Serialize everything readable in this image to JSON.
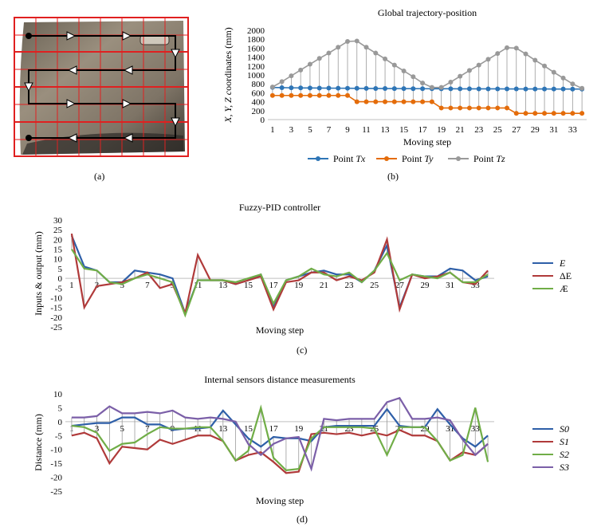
{
  "captions": {
    "a": "(a)",
    "b": "(b)",
    "c": "(c)",
    "d": "(d)"
  },
  "panel_a": {
    "description_icon": "car-door-grid-path-photo"
  },
  "chart_data": [
    {
      "id": "b",
      "type": "line",
      "title": "Global trajectory-position",
      "xlabel": "Moving step",
      "ylabel": "X, Y, Z coordinates (mm)",
      "ylim": [
        0,
        2000
      ],
      "yticks": [
        0,
        200,
        400,
        600,
        800,
        1000,
        1200,
        1400,
        1600,
        1800,
        2000
      ],
      "x": [
        1,
        2,
        3,
        4,
        5,
        6,
        7,
        8,
        9,
        10,
        11,
        12,
        13,
        14,
        15,
        16,
        17,
        18,
        19,
        20,
        21,
        22,
        23,
        24,
        25,
        26,
        27,
        28,
        29,
        30,
        31,
        32,
        33,
        34
      ],
      "xticks": [
        1,
        3,
        5,
        7,
        9,
        11,
        13,
        15,
        17,
        19,
        21,
        23,
        25,
        27,
        29,
        31,
        33
      ],
      "series": [
        {
          "name": "Point Tx",
          "color": "#2e75b6",
          "values": [
            720,
            715,
            712,
            710,
            708,
            706,
            705,
            703,
            702,
            700,
            698,
            697,
            696,
            695,
            694,
            693,
            692,
            691,
            690,
            690,
            689,
            689,
            688,
            688,
            688,
            687,
            687,
            686,
            686,
            686,
            685,
            685,
            684,
            684
          ]
        },
        {
          "name": "Point Ty",
          "color": "#e46c0a",
          "values": [
            540,
            540,
            540,
            540,
            540,
            540,
            540,
            540,
            540,
            400,
            400,
            400,
            400,
            400,
            400,
            400,
            400,
            400,
            260,
            260,
            260,
            260,
            260,
            260,
            260,
            260,
            140,
            140,
            140,
            140,
            140,
            140,
            140,
            140
          ]
        },
        {
          "name": "Point Tz",
          "color": "#999999",
          "values": [
            730,
            850,
            980,
            1110,
            1240,
            1370,
            1490,
            1620,
            1750,
            1760,
            1620,
            1490,
            1360,
            1220,
            1090,
            960,
            820,
            720,
            720,
            840,
            970,
            1100,
            1220,
            1350,
            1480,
            1610,
            1600,
            1470,
            1330,
            1200,
            1060,
            930,
            800,
            700
          ]
        }
      ]
    },
    {
      "id": "c",
      "type": "line",
      "title": "Fuzzy-PID controller",
      "xlabel": "Moving step",
      "ylabel": "Inputs & output (mm)",
      "ylim": [
        -25,
        30
      ],
      "yticks": [
        -25,
        -20,
        -15,
        -10,
        -5,
        0,
        5,
        10,
        15,
        20,
        25,
        30
      ],
      "x": [
        1,
        2,
        3,
        4,
        5,
        6,
        7,
        8,
        9,
        10,
        11,
        12,
        13,
        14,
        15,
        16,
        17,
        18,
        19,
        20,
        21,
        22,
        23,
        24,
        25,
        26,
        27,
        28,
        29,
        30,
        31,
        32,
        33,
        34
      ],
      "xticks": [
        1,
        3,
        5,
        7,
        9,
        11,
        13,
        15,
        17,
        19,
        21,
        23,
        25,
        27,
        29,
        31,
        33
      ],
      "series": [
        {
          "name": "E",
          "color": "#2e5fa8",
          "values": [
            22,
            6,
            4,
            -2,
            -2,
            4,
            3,
            2,
            0,
            -18,
            -1,
            -1,
            -1,
            -3,
            -1,
            2,
            -14,
            -1,
            1,
            3,
            4,
            2,
            2,
            -2,
            4,
            17,
            -15,
            2,
            1,
            1,
            5,
            4,
            -1,
            1
          ]
        },
        {
          "name": "ΔE",
          "color": "#b03a3a",
          "values": [
            23,
            -15,
            -4,
            -3,
            -2,
            0,
            3,
            -5,
            -3,
            -18,
            12,
            -1,
            -1,
            -3,
            -1,
            1,
            -16,
            -2,
            -1,
            3,
            3,
            -1,
            1,
            -1,
            3,
            20,
            -16,
            2,
            0,
            1,
            3,
            -2,
            -3,
            4
          ]
        },
        {
          "name": "Æ",
          "color": "#70ad47",
          "values": [
            15,
            5,
            4,
            -2,
            -3,
            0,
            2,
            0,
            -2,
            -19,
            -1,
            -1,
            -1,
            -2,
            0,
            2,
            -13,
            -1,
            1,
            5,
            2,
            1,
            3,
            -2,
            4,
            13,
            -1,
            2,
            1,
            0,
            3,
            -2,
            -2,
            2
          ]
        }
      ]
    },
    {
      "id": "d",
      "type": "line",
      "title": "Internal sensors distance measurements",
      "xlabel": "Moving step",
      "ylabel": "Distance (mm)",
      "ylim": [
        -25,
        10
      ],
      "yticks": [
        -25,
        -20,
        -15,
        -10,
        -5,
        0,
        5,
        10
      ],
      "x": [
        1,
        2,
        3,
        4,
        5,
        6,
        7,
        8,
        9,
        10,
        11,
        12,
        13,
        14,
        15,
        16,
        17,
        18,
        19,
        20,
        21,
        22,
        23,
        24,
        25,
        26,
        27,
        28,
        29,
        30,
        31,
        32,
        33,
        34
      ],
      "xticks": [
        1,
        3,
        5,
        7,
        9,
        11,
        13,
        15,
        17,
        19,
        21,
        23,
        25,
        27,
        29,
        31,
        33
      ],
      "series": [
        {
          "name": "S0",
          "color": "#2e5fa8",
          "values": [
            -1.5,
            -1,
            -0.5,
            -0.5,
            1.5,
            1.5,
            -1,
            -1,
            -3,
            -2.5,
            -2.5,
            -2,
            4,
            -1,
            -6,
            -9,
            -5.5,
            -6,
            -6,
            -7,
            -2,
            -1.5,
            -1.5,
            -1.5,
            -1.5,
            4.5,
            -1.5,
            -2,
            -2,
            4.5,
            -1,
            -6,
            -9,
            -5
          ]
        },
        {
          "name": "S1",
          "color": "#b03a3a",
          "values": [
            -5,
            -4,
            -6,
            -15,
            -9,
            -9.5,
            -10,
            -6.5,
            -8,
            -6.5,
            -5,
            -5,
            -7,
            -14,
            -12,
            -11,
            -14.5,
            -18.5,
            -18,
            -4.5,
            -4,
            -4.5,
            -4,
            -5,
            -4,
            -5,
            -3,
            -5,
            -5,
            -7,
            -14,
            -11,
            -12,
            -8
          ]
        },
        {
          "name": "S2",
          "color": "#70ad47",
          "values": [
            -1.5,
            -2,
            -4,
            -10.5,
            -8,
            -7.5,
            -4.5,
            -2,
            -2.5,
            -2.5,
            -2,
            -2,
            -7,
            -14,
            -10.5,
            5,
            -13,
            -17.5,
            -17,
            -6,
            -2,
            -2,
            -2,
            -2,
            -2.5,
            -12,
            -2,
            -2,
            -2,
            -7,
            -14,
            -12,
            5,
            -14.5
          ]
        },
        {
          "name": "S3",
          "color": "#7b5fa8",
          "values": [
            1.5,
            1.5,
            2,
            5.5,
            3,
            3,
            3.5,
            3,
            4,
            1.5,
            1,
            1.5,
            1,
            0,
            -8,
            -12,
            -8,
            -6,
            -5.5,
            -17,
            1,
            0.5,
            1,
            1,
            1,
            7,
            8.5,
            1,
            1,
            1.5,
            0.5,
            -6.5,
            -12,
            -8
          ]
        }
      ]
    }
  ]
}
